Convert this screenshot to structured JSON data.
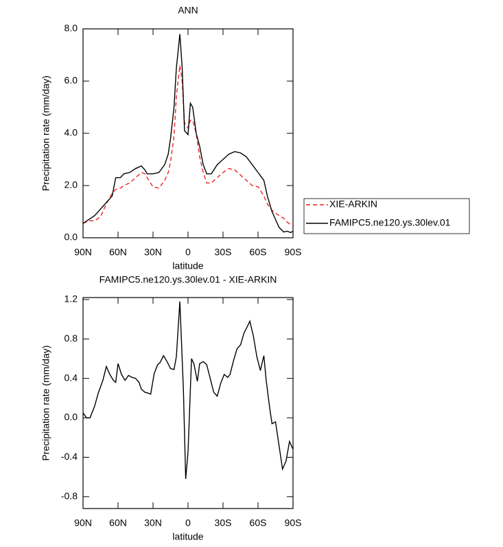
{
  "chart_data": [
    {
      "type": "line",
      "title": "ANN",
      "xlabel": "latitude",
      "ylabel": "Precipitation rate (mm/day)",
      "x": [
        90,
        85,
        80,
        75,
        72,
        70,
        65,
        62,
        58,
        55,
        50,
        45,
        40,
        37,
        35,
        30,
        25,
        20,
        17,
        15,
        12,
        10,
        7,
        5,
        3,
        0,
        -2,
        -4,
        -7,
        -10,
        -13,
        -16,
        -20,
        -25,
        -30,
        -35,
        -40,
        -45,
        -50,
        -55,
        -60,
        -65,
        -68,
        -72,
        -75,
        -78,
        -82,
        -85,
        -88,
        -90
      ],
      "xlim": [
        90,
        -90
      ],
      "xticks": [
        {
          "value": 90,
          "label": "90N"
        },
        {
          "value": 60,
          "label": "60N"
        },
        {
          "value": 30,
          "label": "30N"
        },
        0,
        {
          "value": -30,
          "label": "30S"
        },
        {
          "value": -60,
          "label": "60S"
        },
        {
          "value": -90,
          "label": "90S"
        }
      ],
      "ylim": [
        0,
        8
      ],
      "yticks": [
        {
          "value": 0,
          "label": "0.0"
        },
        {
          "value": 2,
          "label": "2.0"
        },
        {
          "value": 4,
          "label": "4.0"
        },
        {
          "value": 6,
          "label": "6.0"
        },
        {
          "value": 8,
          "label": "8.0"
        }
      ],
      "series": [
        {
          "name": "XIE-ARKIN",
          "color": "#e8231f",
          "line_style": "dashed",
          "values": [
            0.55,
            0.65,
            0.65,
            0.8,
            1.1,
            1.3,
            1.7,
            1.85,
            1.9,
            2.0,
            2.1,
            2.3,
            2.5,
            2.45,
            2.3,
            1.95,
            1.9,
            2.2,
            2.5,
            2.9,
            3.9,
            5.4,
            6.6,
            6.0,
            4.4,
            4.2,
            4.5,
            4.5,
            4.0,
            3.1,
            2.5,
            2.1,
            2.1,
            2.3,
            2.5,
            2.65,
            2.6,
            2.4,
            2.2,
            2.0,
            1.95,
            1.6,
            1.3,
            1.05,
            0.95,
            0.85,
            0.75,
            0.6,
            0.5,
            0.5
          ]
        },
        {
          "name": "FAMIPC5.ne120.ys.30lev.01",
          "color": "#000000",
          "line_style": "solid",
          "values": [
            0.55,
            0.7,
            0.85,
            1.1,
            1.25,
            1.35,
            1.6,
            2.3,
            2.3,
            2.45,
            2.5,
            2.65,
            2.75,
            2.6,
            2.45,
            2.45,
            2.5,
            2.8,
            3.2,
            3.8,
            5.0,
            6.5,
            7.8,
            6.5,
            4.1,
            3.95,
            5.15,
            5.0,
            4.0,
            3.5,
            2.8,
            2.45,
            2.45,
            2.8,
            3.0,
            3.2,
            3.3,
            3.25,
            3.1,
            2.8,
            2.5,
            2.2,
            1.6,
            1.0,
            0.7,
            0.4,
            0.22,
            0.25,
            0.2,
            0.25
          ]
        }
      ]
    },
    {
      "type": "line",
      "title": "FAMIPC5.ne120.ys.30lev.01 - XIE-ARKIN",
      "xlabel": "latitude",
      "ylabel": "Precipitation rate (mm/day)",
      "x": [
        90,
        87,
        84,
        80,
        77,
        73,
        70,
        67,
        64,
        62,
        60,
        57,
        54,
        51,
        48,
        45,
        42,
        40,
        37,
        34,
        32,
        29,
        26,
        24,
        21,
        18,
        15,
        12,
        10,
        7,
        4,
        2,
        0,
        -3,
        -5,
        -8,
        -10,
        -13,
        -16,
        -19,
        -22,
        -25,
        -28,
        -31,
        -34,
        -36,
        -39,
        -42,
        -45,
        -48,
        -51,
        -53,
        -56,
        -59,
        -62,
        -65,
        -67,
        -70,
        -72,
        -75,
        -78,
        -81,
        -84,
        -87,
        -90
      ],
      "xlim": [
        90,
        -90
      ],
      "xticks": [
        {
          "value": 90,
          "label": "90N"
        },
        {
          "value": 60,
          "label": "60N"
        },
        {
          "value": 30,
          "label": "30N"
        },
        0,
        {
          "value": -30,
          "label": "30S"
        },
        {
          "value": -60,
          "label": "60S"
        },
        {
          "value": -90,
          "label": "90S"
        }
      ],
      "ylim": [
        -0.92,
        1.22
      ],
      "yticks": [
        -0.8,
        -0.4,
        {
          "value": 0,
          "label": "0.0"
        },
        0.4,
        0.8,
        1.2
      ],
      "color": "#000000",
      "values": [
        0.05,
        0.0,
        0.0,
        0.12,
        0.25,
        0.38,
        0.52,
        0.44,
        0.38,
        0.36,
        0.55,
        0.44,
        0.38,
        0.43,
        0.41,
        0.4,
        0.36,
        0.29,
        0.26,
        0.25,
        0.24,
        0.45,
        0.54,
        0.56,
        0.63,
        0.57,
        0.5,
        0.49,
        0.62,
        1.18,
        0.3,
        -0.62,
        -0.35,
        0.6,
        0.55,
        0.37,
        0.55,
        0.57,
        0.54,
        0.4,
        0.26,
        0.22,
        0.35,
        0.44,
        0.41,
        0.44,
        0.58,
        0.7,
        0.74,
        0.86,
        0.93,
        0.98,
        0.83,
        0.62,
        0.48,
        0.63,
        0.38,
        0.1,
        -0.06,
        -0.04,
        -0.28,
        -0.52,
        -0.44,
        -0.24,
        -0.32
      ]
    }
  ]
}
